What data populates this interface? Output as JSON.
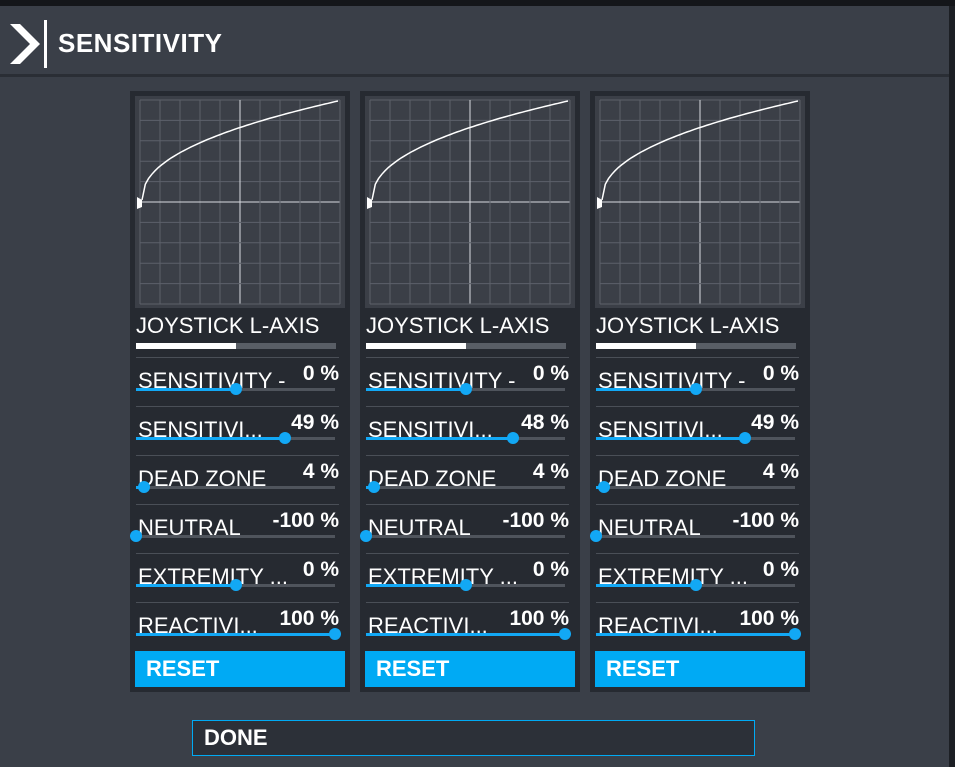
{
  "header": {
    "title": "SENSITIVITY"
  },
  "panels": [
    {
      "axis_label": "JOYSTICK L-AXIS",
      "axis_position": 0.5,
      "rows": [
        {
          "label": "SENSITIVITY -",
          "value": "0 %",
          "level": 0.5
        },
        {
          "label": "SENSITIVI...",
          "value": "49 %",
          "level": 0.75
        },
        {
          "label": "DEAD ZONE",
          "value": "4 %",
          "level": 0.04
        },
        {
          "label": "NEUTRAL",
          "value": "-100 %",
          "level": 0.0
        },
        {
          "label": "EXTREMITY ...",
          "value": "0 %",
          "level": 0.5
        },
        {
          "label": "REACTIVI...",
          "value": "100 %",
          "level": 1.0
        }
      ],
      "reset_label": "RESET"
    },
    {
      "axis_label": "JOYSTICK L-AXIS",
      "axis_position": 0.5,
      "rows": [
        {
          "label": "SENSITIVITY -",
          "value": "0 %",
          "level": 0.5
        },
        {
          "label": "SENSITIVI...",
          "value": "48 %",
          "level": 0.74
        },
        {
          "label": "DEAD ZONE",
          "value": "4 %",
          "level": 0.04
        },
        {
          "label": "NEUTRAL",
          "value": "-100 %",
          "level": 0.0
        },
        {
          "label": "EXTREMITY ...",
          "value": "0 %",
          "level": 0.5
        },
        {
          "label": "REACTIVI...",
          "value": "100 %",
          "level": 1.0
        }
      ],
      "reset_label": "RESET"
    },
    {
      "axis_label": "JOYSTICK L-AXIS",
      "axis_position": 0.5,
      "rows": [
        {
          "label": "SENSITIVITY -",
          "value": "0 %",
          "level": 0.5
        },
        {
          "label": "SENSITIVI...",
          "value": "49 %",
          "level": 0.75
        },
        {
          "label": "DEAD ZONE",
          "value": "4 %",
          "level": 0.04
        },
        {
          "label": "NEUTRAL",
          "value": "-100 %",
          "level": 0.0
        },
        {
          "label": "EXTREMITY ...",
          "value": "0 %",
          "level": 0.5
        },
        {
          "label": "REACTIVI...",
          "value": "100 %",
          "level": 1.0
        }
      ],
      "reset_label": "RESET"
    }
  ],
  "done_label": "DONE",
  "colors": {
    "accent": "#00aaf4",
    "panel_bg": "#262a31",
    "page_bg": "#3a3f48"
  }
}
